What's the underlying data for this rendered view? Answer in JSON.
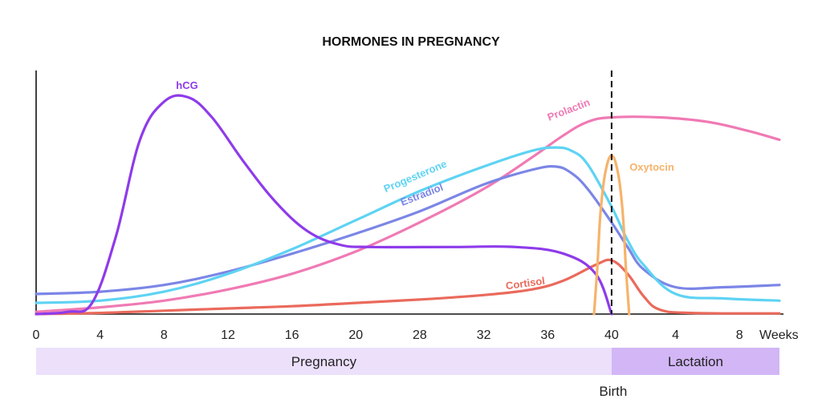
{
  "colors": {
    "hcg": "#8e3bea",
    "progesterone": "#5ed3f3",
    "estradiol": "#7b86e6",
    "prolactin": "#f07ab4",
    "oxytocin": "#f6b36b",
    "cortisol": "#ea6a5c",
    "pregnancy_band": "#ece0fb",
    "lactation_band": "#d2b6f6",
    "axis": "#111111"
  },
  "chart_data": {
    "type": "line",
    "title": "HORMONES IN PREGNANCY",
    "x_unit_label": "Weeks",
    "x_ticks": [
      "0",
      "4",
      "8",
      "12",
      "16",
      "20",
      "28",
      "32",
      "36",
      "40",
      "4",
      "8"
    ],
    "x_tick_positions": [
      0,
      4,
      8,
      12,
      16,
      20,
      24,
      28,
      32,
      36,
      40,
      44
    ],
    "xlim": [
      0,
      46.5
    ],
    "ylim": [
      0,
      100
    ],
    "y_ticks_shown": false,
    "grid": false,
    "legend": "none (series labeled directly on lines)",
    "annotations": [
      {
        "x": 36,
        "label": "Birth",
        "style": "dashed vertical line"
      }
    ],
    "phases": [
      {
        "label": "Pregnancy",
        "start": 0,
        "end": 36
      },
      {
        "label": "Lactation",
        "start": 36,
        "end": 46.5
      }
    ],
    "series": [
      {
        "key": "hcg",
        "name": "hCG",
        "points": [
          [
            0,
            0
          ],
          [
            2,
            1
          ],
          [
            3.5,
            5
          ],
          [
            5,
            35
          ],
          [
            6.5,
            78
          ],
          [
            8,
            95
          ],
          [
            9.5,
            97
          ],
          [
            11,
            88
          ],
          [
            13,
            68
          ],
          [
            15,
            50
          ],
          [
            17,
            37
          ],
          [
            19,
            31
          ],
          [
            21,
            30
          ],
          [
            26,
            30
          ],
          [
            30,
            30
          ],
          [
            33,
            27
          ],
          [
            35,
            18
          ],
          [
            36,
            0
          ]
        ]
      },
      {
        "key": "progesterone",
        "name": "Progesterone",
        "points": [
          [
            0,
            5
          ],
          [
            4,
            6
          ],
          [
            8,
            10
          ],
          [
            12,
            18
          ],
          [
            16,
            29
          ],
          [
            20,
            42
          ],
          [
            24,
            55
          ],
          [
            28,
            66
          ],
          [
            31,
            73
          ],
          [
            32.5,
            74.5
          ],
          [
            33.5,
            73
          ],
          [
            34.5,
            67
          ],
          [
            36,
            48
          ],
          [
            37,
            33
          ],
          [
            38,
            22
          ],
          [
            40,
            9
          ],
          [
            43,
            7
          ],
          [
            46.5,
            6
          ]
        ]
      },
      {
        "key": "estradiol",
        "name": "Estradiol",
        "points": [
          [
            0,
            9
          ],
          [
            4,
            10
          ],
          [
            8,
            13
          ],
          [
            12,
            19
          ],
          [
            16,
            27
          ],
          [
            20,
            36
          ],
          [
            24,
            46
          ],
          [
            28,
            58
          ],
          [
            31,
            64.5
          ],
          [
            32.5,
            66
          ],
          [
            33.5,
            63
          ],
          [
            34.5,
            56
          ],
          [
            36,
            41
          ],
          [
            37,
            30
          ],
          [
            38,
            20
          ],
          [
            40,
            12
          ],
          [
            43,
            12
          ],
          [
            46.5,
            13
          ]
        ]
      },
      {
        "key": "prolactin",
        "name": "Prolactin",
        "points": [
          [
            0,
            1
          ],
          [
            4,
            3
          ],
          [
            8,
            6
          ],
          [
            12,
            11
          ],
          [
            16,
            18
          ],
          [
            20,
            28
          ],
          [
            24,
            41
          ],
          [
            28,
            56
          ],
          [
            31,
            70
          ],
          [
            33,
            80
          ],
          [
            34.5,
            86
          ],
          [
            36,
            88
          ],
          [
            39,
            88
          ],
          [
            42,
            86
          ],
          [
            44.5,
            82
          ],
          [
            46.5,
            78
          ]
        ]
      },
      {
        "key": "oxytocin",
        "name": "Oxytocin",
        "points": [
          [
            34.9,
            0
          ],
          [
            35.1,
            20
          ],
          [
            35.3,
            45
          ],
          [
            35.6,
            63
          ],
          [
            36,
            71
          ],
          [
            36.4,
            63
          ],
          [
            36.7,
            45
          ],
          [
            36.9,
            20
          ],
          [
            37.1,
            0
          ]
        ]
      },
      {
        "key": "cortisol",
        "name": "Cortisol",
        "points": [
          [
            0,
            0
          ],
          [
            4,
            0.5
          ],
          [
            8,
            1.5
          ],
          [
            12,
            2.5
          ],
          [
            16,
            3.5
          ],
          [
            20,
            5
          ],
          [
            24,
            6.5
          ],
          [
            28,
            8.5
          ],
          [
            31,
            11
          ],
          [
            33,
            15
          ],
          [
            35,
            22
          ],
          [
            36,
            24
          ],
          [
            37,
            18
          ],
          [
            38,
            8
          ],
          [
            39,
            2
          ],
          [
            41,
            0.5
          ],
          [
            46.5,
            0.3
          ]
        ]
      }
    ]
  },
  "series_labels": {
    "hcg": "hCG",
    "progesterone": "Progesterone",
    "estradiol": "Estradiol",
    "prolactin": "Prolactin",
    "oxytocin": "Oxytocin",
    "cortisol": "Cortisol"
  },
  "phase_labels": {
    "pregnancy": "Pregnancy",
    "lactation": "Lactation"
  },
  "birth_label": "Birth"
}
